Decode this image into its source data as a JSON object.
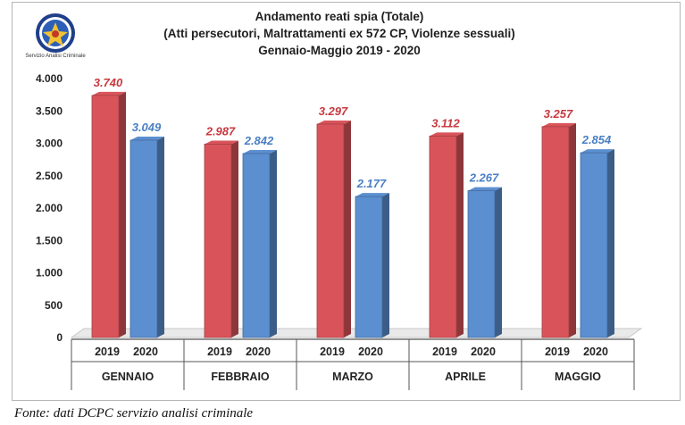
{
  "logo": {
    "caption": "Servizio Analisi Criminale",
    "icon": "seal-emblem-icon"
  },
  "title_lines": [
    "Andamento reati spia (Totale)",
    "(Atti persecutori, Maltrattamenti ex 572 CP, Violenze sessuali)",
    "Gennaio-Maggio 2019 - 2020"
  ],
  "source_note": "Fonte: dati DCPC servizio analisi criminale",
  "colors": {
    "series_2019": "#d9545a",
    "series_2020": "#5b8fd0",
    "label_2019": "#c8383e",
    "label_2020": "#4a7fc4"
  },
  "chart_data": {
    "type": "bar",
    "title": "Andamento reati spia (Totale)",
    "subtitle": "(Atti persecutori, Maltrattamenti ex 572 CP, Violenze sessuali) Gennaio-Maggio 2019 - 2020",
    "categories": [
      "GENNAIO",
      "FEBBRAIO",
      "MARZO",
      "APRILE",
      "MAGGIO"
    ],
    "series": [
      {
        "name": "2019",
        "values": [
          3740,
          2987,
          3297,
          3112,
          3257
        ],
        "labels": [
          "3.740",
          "2.987",
          "3.297",
          "3.112",
          "3.257"
        ]
      },
      {
        "name": "2020",
        "values": [
          3049,
          2842,
          2177,
          2267,
          2854
        ],
        "labels": [
          "3.049",
          "2.842",
          "2.177",
          "2.267",
          "2.854"
        ]
      }
    ],
    "ylim": [
      0,
      4000
    ],
    "yticks": [
      0,
      500,
      1000,
      1500,
      2000,
      2500,
      3000,
      3500,
      4000
    ],
    "ytick_labels": [
      "0",
      "500",
      "1.000",
      "1.500",
      "2.000",
      "2.500",
      "3.000",
      "3.500",
      "4.000"
    ],
    "grid": false,
    "legend": "none",
    "xlabel": "",
    "ylabel": ""
  }
}
